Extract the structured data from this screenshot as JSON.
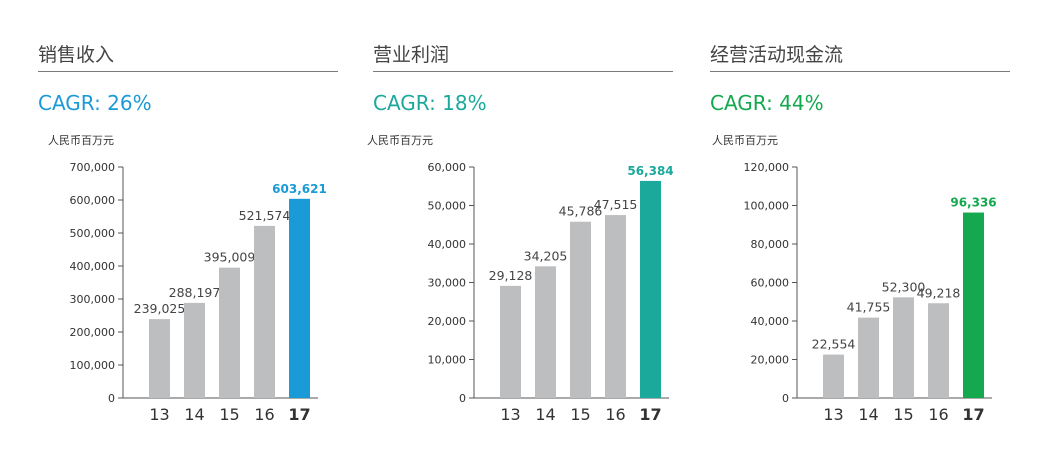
{
  "panels": [
    {
      "title": "销售收入",
      "cagr": "CAGR: 26%",
      "unit": "人民币百万元",
      "accent": "#1a9ad6",
      "bar_color": "#bcbec0"
    },
    {
      "title": "营业利润",
      "cagr": "CAGR: 18%",
      "unit": "人民币百万元",
      "accent": "#1aa99b",
      "bar_color": "#bcbec0"
    },
    {
      "title": "经营活动现金流",
      "cagr": "CAGR: 44%",
      "unit": "人民币百万元",
      "accent": "#14a94e",
      "bar_color": "#bcbec0"
    }
  ],
  "chart_data": [
    {
      "type": "bar",
      "title": "销售收入",
      "ylabel": "人民币百万元",
      "categories": [
        "13",
        "14",
        "15",
        "16",
        "17"
      ],
      "values": [
        239025,
        288197,
        395009,
        521574,
        603621
      ],
      "value_labels": [
        "239,025",
        "288,197",
        "395,009",
        "521,574",
        "603,621"
      ],
      "ylim": [
        0,
        700000
      ],
      "yticks": [
        0,
        100000,
        200000,
        300000,
        400000,
        500000,
        600000,
        700000
      ],
      "ytick_labels": [
        "0",
        "100,000",
        "200,000",
        "300,000",
        "400,000",
        "500,000",
        "600,000",
        "700,000"
      ],
      "highlight_index": 4,
      "grid": false
    },
    {
      "type": "bar",
      "title": "营业利润",
      "ylabel": "人民币百万元",
      "categories": [
        "13",
        "14",
        "15",
        "16",
        "17"
      ],
      "values": [
        29128,
        34205,
        45786,
        47515,
        56384
      ],
      "value_labels": [
        "29,128",
        "34,205",
        "45,786",
        "47,515",
        "56,384"
      ],
      "ylim": [
        0,
        60000
      ],
      "yticks": [
        0,
        10000,
        20000,
        30000,
        40000,
        50000,
        60000
      ],
      "ytick_labels": [
        "0",
        "10,000",
        "20,000",
        "30,000",
        "40,000",
        "50,000",
        "60,000"
      ],
      "highlight_index": 4,
      "grid": false
    },
    {
      "type": "bar",
      "title": "经营活动现金流",
      "ylabel": "人民币百万元",
      "categories": [
        "13",
        "14",
        "15",
        "16",
        "17"
      ],
      "values": [
        22554,
        41755,
        52300,
        49218,
        96336
      ],
      "value_labels": [
        "22,554",
        "41,755",
        "52,300",
        "49,218",
        "96,336"
      ],
      "ylim": [
        0,
        120000
      ],
      "yticks": [
        0,
        20000,
        40000,
        60000,
        80000,
        100000,
        120000
      ],
      "ytick_labels": [
        "0",
        "20,000",
        "40,000",
        "60,000",
        "80,000",
        "100,000",
        "120,000"
      ],
      "highlight_index": 4,
      "grid": false
    }
  ]
}
